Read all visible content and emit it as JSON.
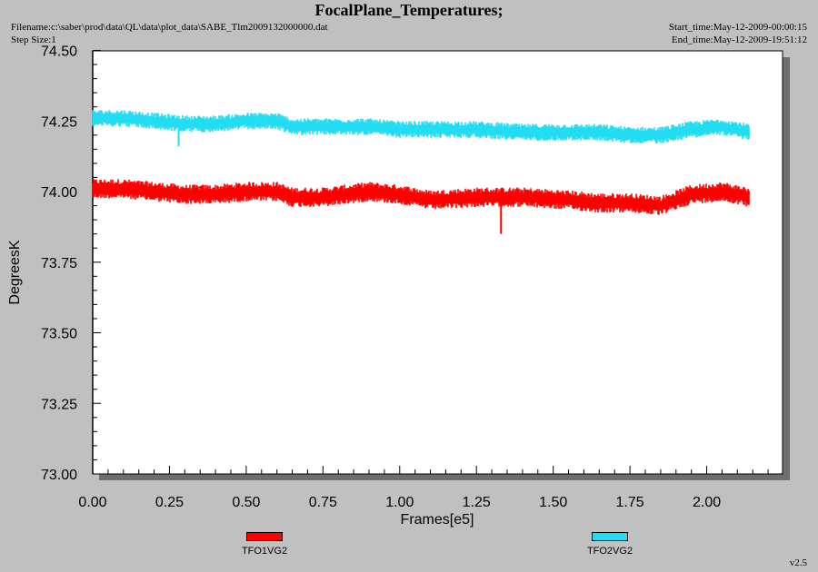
{
  "header": {
    "title": "FocalPlane_Temperatures;",
    "filename": "Filename:c:\\saber\\prod\\data\\QL\\data\\plot_data\\SABE_Tlm2009132000000.dat",
    "step_size": "Step Size:1",
    "start_time": "Start_time:May-12-2009-00:00:15",
    "end_time": "End_time:May-12-2009-19:51:12"
  },
  "footer": {
    "version": "v2.5"
  },
  "colors": {
    "background": "#c0c0c0",
    "plot_background": "#ffffff",
    "shadow": "#6e6e6e",
    "axis": "#000000"
  },
  "chart_data": {
    "type": "line",
    "title": "FocalPlane_Temperatures;",
    "xlabel": "Frames[e5]",
    "ylabel": "DegreesK",
    "xlim": [
      0.0,
      2.25
    ],
    "ylim": [
      73.0,
      74.5
    ],
    "x_ticks": [
      "0.00",
      "0.25",
      "0.50",
      "0.75",
      "1.00",
      "1.25",
      "1.50",
      "1.75",
      "2.00"
    ],
    "y_ticks": [
      "73.00",
      "73.25",
      "73.50",
      "73.75",
      "74.00",
      "74.25",
      "74.50"
    ],
    "grid": false,
    "legend_position": "bottom",
    "series": [
      {
        "name": "TFO1VG2",
        "color": "#ff0000",
        "x": [
          0.0,
          0.1,
          0.2,
          0.3,
          0.4,
          0.5,
          0.6,
          0.65,
          0.75,
          0.9,
          1.0,
          1.1,
          1.25,
          1.4,
          1.55,
          1.65,
          1.75,
          1.85,
          1.95,
          2.05,
          2.14
        ],
        "y": [
          74.01,
          74.01,
          74.0,
          73.99,
          73.99,
          74.0,
          74.0,
          73.98,
          73.98,
          74.0,
          73.99,
          73.97,
          73.98,
          73.98,
          73.97,
          73.96,
          73.96,
          73.95,
          73.99,
          74.0,
          73.98
        ],
        "band_halfwidth": 0.035,
        "spikes": [
          {
            "x": 1.33,
            "low": 73.85
          },
          {
            "x": 0.28,
            "low": 73.96
          }
        ]
      },
      {
        "name": "TFO2VG2",
        "color": "#22ddf2",
        "x": [
          0.0,
          0.1,
          0.2,
          0.3,
          0.4,
          0.5,
          0.6,
          0.65,
          0.75,
          0.9,
          1.0,
          1.1,
          1.25,
          1.4,
          1.55,
          1.65,
          1.75,
          1.85,
          1.95,
          2.05,
          2.14
        ],
        "y": [
          74.26,
          74.26,
          74.25,
          74.24,
          74.24,
          74.25,
          74.25,
          74.23,
          74.23,
          74.23,
          74.22,
          74.22,
          74.22,
          74.21,
          74.21,
          74.21,
          74.2,
          74.2,
          74.22,
          74.23,
          74.21
        ],
        "band_halfwidth": 0.03,
        "spikes": [
          {
            "x": 0.28,
            "low": 74.16
          }
        ]
      }
    ]
  }
}
